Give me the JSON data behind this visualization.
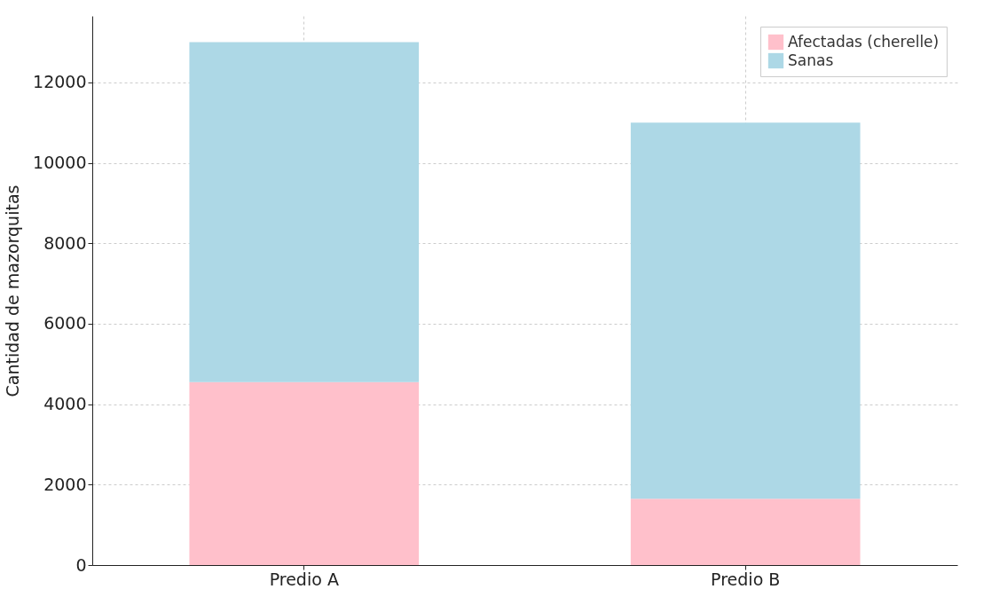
{
  "chart_data": {
    "type": "bar",
    "ylabel": "Cantidad de mazorquitas",
    "categories": [
      "Predio A",
      "Predio B"
    ],
    "stacked": true,
    "series": [
      {
        "name": "Afectadas (cherelle)",
        "color": "#ffc0cb",
        "values": [
          4550,
          1650
        ]
      },
      {
        "name": "Sanas",
        "color": "#add8e6",
        "values": [
          8450,
          9350
        ]
      }
    ],
    "ylim": [
      0,
      13650
    ],
    "yticks": [
      0,
      2000,
      4000,
      6000,
      8000,
      10000,
      12000
    ],
    "grid": true,
    "legend": "top right"
  }
}
